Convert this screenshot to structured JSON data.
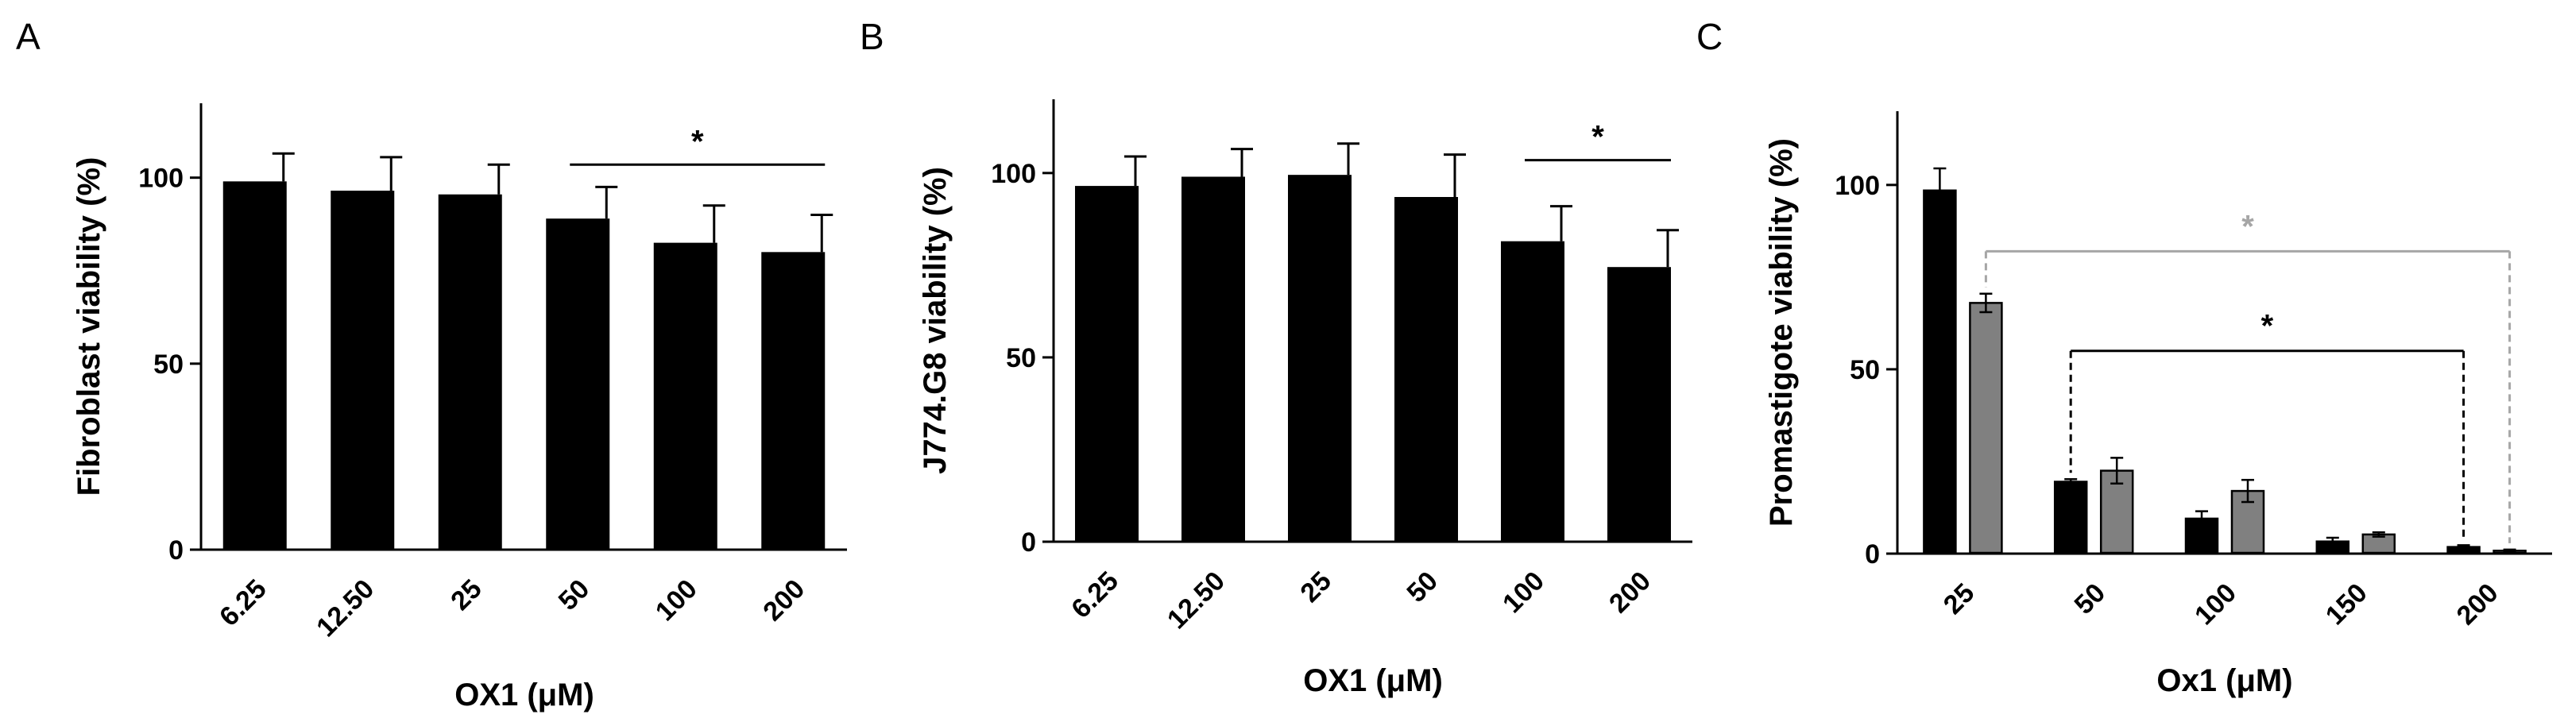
{
  "chart_data": [
    {
      "panel": "A",
      "type": "bar",
      "categories": [
        "6.25",
        "12.50",
        "25",
        "50",
        "100",
        "200"
      ],
      "values": [
        99,
        96.5,
        95.5,
        89,
        82.5,
        80
      ],
      "errors": [
        7.5,
        9,
        8,
        8.5,
        10,
        10
      ],
      "xlabel": "OX1 (μM)",
      "ylabel": "Fibroblast viability (%)",
      "ylim": [
        0,
        120
      ],
      "yticks": [
        "0",
        "50",
        "100"
      ],
      "bar_color": "#000000",
      "significance": [
        {
          "from": 3,
          "to": 5,
          "label": "*",
          "color": "#000000"
        }
      ]
    },
    {
      "panel": "B",
      "type": "bar",
      "categories": [
        "6.25",
        "12.50",
        "25",
        "50",
        "100",
        "200"
      ],
      "values": [
        96.5,
        99,
        99.5,
        93.5,
        81.5,
        74.5
      ],
      "errors": [
        8,
        7.5,
        8.5,
        11.5,
        9.5,
        10
      ],
      "xlabel": "OX1 (μM)",
      "ylabel": "J774.G8 viability (%)",
      "ylim": [
        0,
        120
      ],
      "yticks": [
        "0",
        "50",
        "100"
      ],
      "bar_color": "#000000",
      "significance": [
        {
          "from": 4,
          "to": 5,
          "label": "*",
          "color": "#000000"
        }
      ]
    },
    {
      "panel": "C",
      "type": "bar",
      "categories": [
        "25",
        "50",
        "100",
        "150",
        "200"
      ],
      "series": [
        {
          "values": [
            98.5,
            19.5,
            9.5,
            3.3,
            1.8
          ],
          "errors": [
            6,
            0.7,
            2,
            1,
            0.5
          ],
          "color": "#000000"
        },
        {
          "values": [
            68,
            22.5,
            17,
            5.2,
            0.8
          ],
          "errors": [
            2.5,
            3.5,
            3,
            0.6,
            0.3
          ],
          "color": "#808080"
        }
      ],
      "xlabel": "Ox1 (μM)",
      "ylabel": "Promastigote viability (%)",
      "ylim": [
        0,
        120
      ],
      "yticks": [
        "0",
        "50",
        "100"
      ],
      "significance": [
        {
          "series": 0,
          "from": 1,
          "to": 4,
          "label": "*",
          "color": "#000000"
        },
        {
          "series": 1,
          "from": 0,
          "to": 4,
          "label": "*",
          "color": "#a6a6a6"
        }
      ]
    }
  ]
}
